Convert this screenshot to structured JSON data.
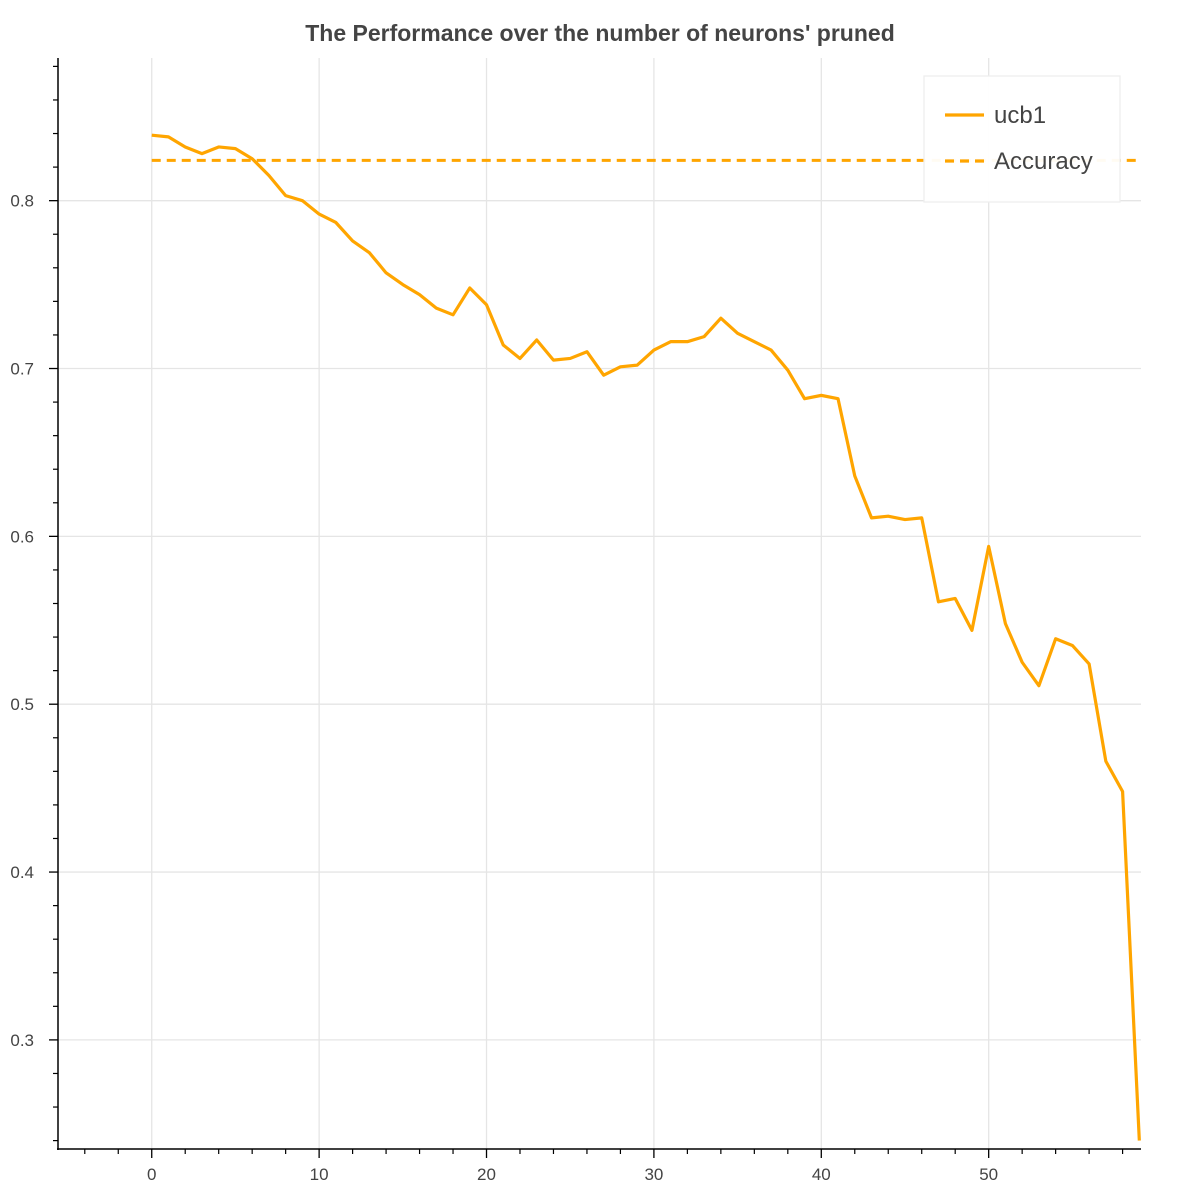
{
  "chart_data": {
    "type": "line",
    "title": "The Performance over the number of neurons' pruned",
    "xlabel": "",
    "ylabel": "",
    "xlim": [
      -5.6,
      59.1
    ],
    "ylim": [
      0.235,
      0.885
    ],
    "x_ticks": [
      0,
      10,
      20,
      30,
      40,
      50
    ],
    "x_tick_labels": [
      "0",
      "10",
      "20",
      "30",
      "40",
      "50"
    ],
    "x_minor_step": 2,
    "y_ticks": [
      0.3,
      0.4,
      0.5,
      0.6,
      0.7,
      0.8
    ],
    "y_tick_labels": [
      "0.3",
      "0.4",
      "0.5",
      "0.6",
      "0.7",
      "0.8"
    ],
    "y_minor_step": 0.02,
    "grid": true,
    "legend_position": "top-right",
    "series": [
      {
        "name": "ucb1",
        "style": "solid",
        "color": "#FFA500",
        "x": [
          0,
          1,
          2,
          3,
          4,
          5,
          6,
          7,
          8,
          9,
          10,
          11,
          12,
          13,
          14,
          15,
          16,
          17,
          18,
          19,
          20,
          21,
          22,
          23,
          24,
          25,
          26,
          27,
          28,
          29,
          30,
          31,
          32,
          33,
          34,
          35,
          36,
          37,
          38,
          39,
          40,
          41,
          42,
          43,
          44,
          45,
          46,
          47,
          48,
          49,
          50,
          51,
          52,
          53,
          54,
          55,
          56,
          57,
          58,
          59
        ],
        "y": [
          0.839,
          0.838,
          0.832,
          0.828,
          0.832,
          0.831,
          0.825,
          0.815,
          0.803,
          0.8,
          0.792,
          0.787,
          0.776,
          0.769,
          0.757,
          0.75,
          0.744,
          0.736,
          0.732,
          0.748,
          0.738,
          0.714,
          0.706,
          0.717,
          0.705,
          0.706,
          0.71,
          0.696,
          0.701,
          0.702,
          0.711,
          0.716,
          0.716,
          0.719,
          0.73,
          0.721,
          0.716,
          0.711,
          0.699,
          0.682,
          0.684,
          0.682,
          0.636,
          0.611,
          0.612,
          0.61,
          0.611,
          0.561,
          0.563,
          0.544,
          0.594,
          0.548,
          0.525,
          0.511,
          0.539,
          0.535,
          0.524,
          0.466,
          0.448,
          0.24
        ]
      },
      {
        "name": "Accuracy",
        "style": "dashed",
        "color": "#FFA500",
        "x": [
          0,
          59.1
        ],
        "y": [
          0.824,
          0.824
        ]
      }
    ]
  }
}
